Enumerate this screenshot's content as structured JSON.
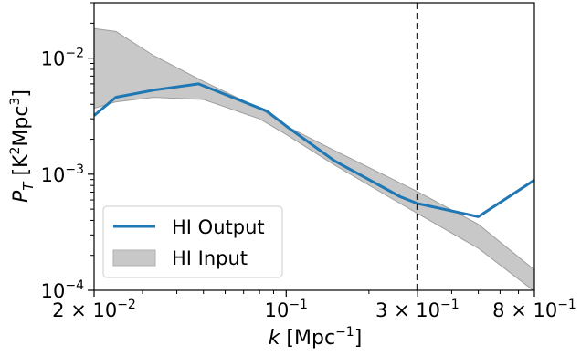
{
  "chart_data": {
    "type": "line",
    "x_scale": "log",
    "y_scale": "log",
    "xlim": [
      0.02,
      0.8
    ],
    "ylim": [
      0.0001,
      0.03
    ],
    "xlabel": {
      "main": "k",
      "unit_prefix": " [Mpc",
      "exp": "−1",
      "unit_suffix": "]"
    },
    "ylabel": {
      "p": "P",
      "sub": "T",
      "unit_a": " [K",
      "exp1": "2",
      "unit_b": "Mpc",
      "exp2": "3",
      "unit_c": "]"
    },
    "x_ticks": [
      {
        "value": 0.02,
        "mant": "2 × 10",
        "exp": "−2"
      },
      {
        "value": 0.1,
        "mant": "10",
        "exp": "−1"
      },
      {
        "value": 0.3,
        "mant": "3 × 10",
        "exp": "−1"
      },
      {
        "value": 0.8,
        "mant": "8 × 10",
        "exp": "−1"
      }
    ],
    "y_ticks": [
      {
        "value": 0.01,
        "mant": "10",
        "exp": "−2"
      },
      {
        "value": 0.001,
        "mant": "10",
        "exp": "−3"
      },
      {
        "value": 0.0001,
        "mant": "10",
        "exp": "−4"
      }
    ],
    "vline": {
      "x": 0.3,
      "style": "dashed",
      "color": "#000000"
    },
    "legend_position": "lower-left",
    "series": [
      {
        "name": "HI Output",
        "kind": "line",
        "color": "#1f77b4",
        "x": [
          0.02,
          0.024,
          0.033,
          0.048,
          0.085,
          0.1,
          0.15,
          0.26,
          0.3,
          0.5,
          0.8
        ],
        "y": [
          0.0032,
          0.0046,
          0.0053,
          0.006,
          0.0035,
          0.0026,
          0.0013,
          0.00064,
          0.00056,
          0.00043,
          0.00089
        ]
      },
      {
        "name": "HI Input",
        "kind": "band",
        "color": "#bdbdbd",
        "x_upper": [
          0.02,
          0.024,
          0.033,
          0.05,
          0.08,
          0.1,
          0.15,
          0.25,
          0.3,
          0.5,
          0.8
        ],
        "upper": [
          0.018,
          0.017,
          0.0105,
          0.0063,
          0.0037,
          0.0026,
          0.0016,
          0.00088,
          0.00071,
          0.00037,
          0.00015
        ],
        "x_lower": [
          0.02,
          0.024,
          0.033,
          0.05,
          0.08,
          0.1,
          0.15,
          0.25,
          0.3,
          0.5,
          0.8
        ],
        "lower": [
          0.0037,
          0.0042,
          0.0046,
          0.0044,
          0.003,
          0.0022,
          0.0012,
          0.00059,
          0.00046,
          0.00023,
          9.8e-05
        ]
      }
    ]
  }
}
